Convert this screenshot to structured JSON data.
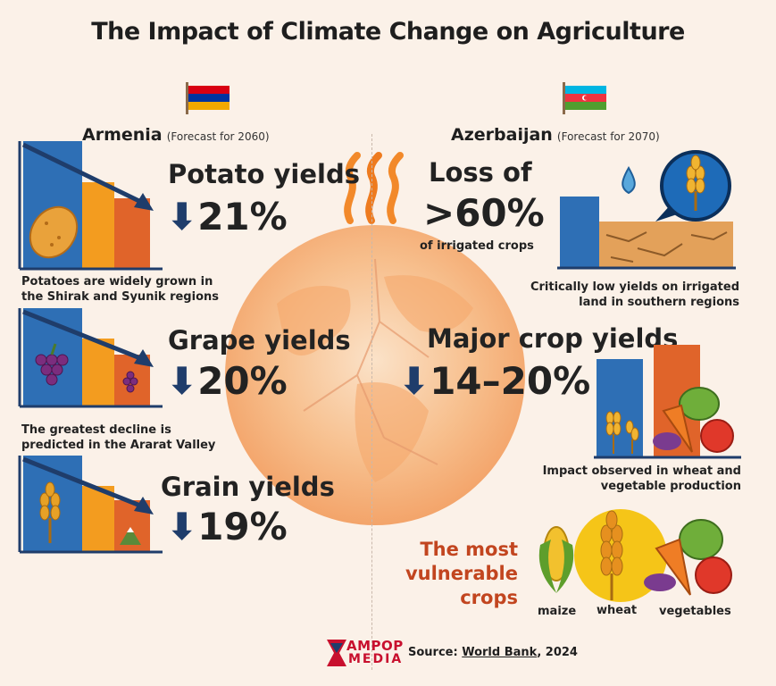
{
  "title": "The Impact of Climate Change on Agriculture",
  "armenia": {
    "country": "Armenia",
    "forecast": "(Forecast for 2060)",
    "items": [
      {
        "label": "Potato yields",
        "change": "21%",
        "caption_line1": "Potatoes are widely grown in",
        "caption_line2": "the Shirak and Syunik regions"
      },
      {
        "label": "Grape yields",
        "change": "20%",
        "caption_line1": "The greatest decline is",
        "caption_line2": "predicted in the Ararat Valley"
      },
      {
        "label": "Grain yields",
        "change": "19%"
      }
    ]
  },
  "azerbaijan": {
    "country": "Azerbaijan",
    "forecast": "(Forecast for 2070)",
    "loss_label": "Loss of",
    "loss_value": ">60%",
    "loss_sub": "of irrigated crops",
    "loss_caption_line1": "Critically low yields on irrigated",
    "loss_caption_line2": "land in southern regions",
    "major_label": "Major crop yields",
    "major_value": "14–20%",
    "major_caption_line1": "Impact observed in wheat and",
    "major_caption_line2": "vegetable production",
    "vulnerable_line1": "The most",
    "vulnerable_line2": "vulnerable",
    "vulnerable_line3": "crops",
    "crops": [
      "maize",
      "wheat",
      "vegetables"
    ]
  },
  "source_prefix": "Source:",
  "source_name": "World Bank",
  "source_year": ", 2024",
  "logo_line1": "AMPOP",
  "logo_line2": "MEDIA",
  "colors": {
    "blue": "#2e6fb5",
    "orange": "#f39c1f",
    "red_orange": "#e0642a",
    "navy": "#1f3d6b",
    "accent": "#c2451f"
  },
  "chart_data": [
    {
      "type": "bar",
      "title": "Potato yields",
      "country": "Armenia",
      "values": [
        -21
      ],
      "unit": "%"
    },
    {
      "type": "bar",
      "title": "Grape yields",
      "country": "Armenia",
      "values": [
        -20
      ],
      "unit": "%"
    },
    {
      "type": "bar",
      "title": "Grain yields",
      "country": "Armenia",
      "values": [
        -19
      ],
      "unit": "%"
    },
    {
      "type": "bar",
      "title": "Loss of irrigated crops",
      "country": "Azerbaijan",
      "values": [
        60
      ],
      "unit": "%"
    },
    {
      "type": "bar",
      "title": "Major crop yields",
      "country": "Azerbaijan",
      "range": [
        -14,
        -20
      ],
      "unit": "%"
    }
  ]
}
